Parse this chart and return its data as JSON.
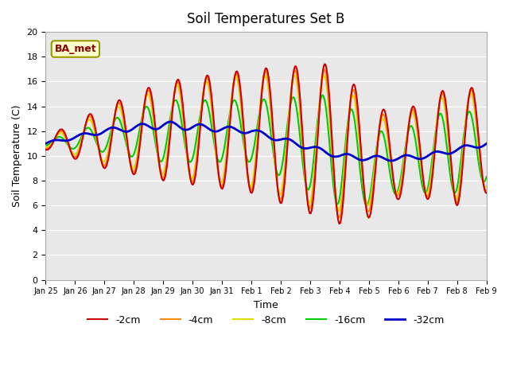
{
  "title": "Soil Temperatures Set B",
  "xlabel": "Time",
  "ylabel": "Soil Temperature (C)",
  "ylim": [
    0,
    20
  ],
  "background_color": "#e8e8e8",
  "plot_bg": "#e8e8e8",
  "annotation": "BA_met",
  "xtick_labels": [
    "Jan 25",
    "Jan 26",
    "Jan 27",
    "Jan 28",
    "Jan 29",
    "Jan 30",
    "Jan 31",
    "Feb 1",
    "Feb 2",
    "Feb 3",
    "Feb 4",
    "Feb 5",
    "Feb 6",
    "Feb 7",
    "Feb 8",
    "Feb 9"
  ],
  "series_colors": [
    "#cc0000",
    "#ff8800",
    "#dddd00",
    "#00cc00",
    "#0000cc"
  ],
  "series_lws": [
    1.5,
    1.5,
    1.5,
    1.5,
    2.0
  ],
  "series_labels": [
    "-2cm",
    "-4cm",
    "-8cm",
    "-16cm",
    "-32cm"
  ]
}
